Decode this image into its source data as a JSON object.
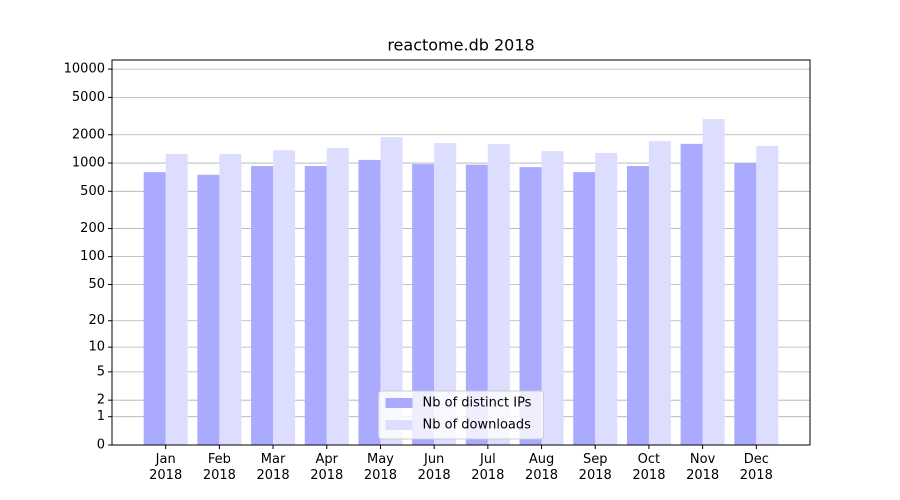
{
  "chart_data": {
    "type": "bar",
    "title": "reactome.db 2018",
    "categories": [
      "Jan\n2018",
      "Feb\n2018",
      "Mar\n2018",
      "Apr\n2018",
      "May\n2018",
      "Jun\n2018",
      "Jul\n2018",
      "Aug\n2018",
      "Sep\n2018",
      "Oct\n2018",
      "Nov\n2018",
      "Dec\n2018"
    ],
    "series": [
      {
        "name": "Nb of distinct IPs",
        "color": "#aaaaff",
        "values": [
          800,
          750,
          930,
          930,
          1080,
          975,
          960,
          905,
          800,
          930,
          1600,
          1000
        ]
      },
      {
        "name": "Nb of downloads",
        "color": "#ddddff",
        "values": [
          1250,
          1250,
          1370,
          1445,
          1890,
          1630,
          1590,
          1340,
          1280,
          1710,
          2940,
          1520
        ]
      }
    ],
    "yscale": "log1p",
    "ylim": [
      0,
      12500
    ],
    "yticks": [
      0,
      1,
      2,
      5,
      10,
      20,
      50,
      100,
      200,
      500,
      1000,
      2000,
      5000,
      10000
    ],
    "grid": true,
    "legend": "lower center"
  }
}
